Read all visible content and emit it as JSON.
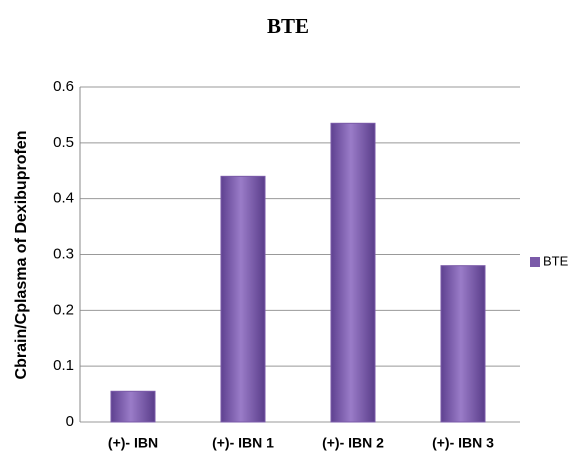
{
  "chart_data": {
    "type": "bar",
    "title": "BTE",
    "y_label": "Cbrain/Cplasma of Dexibuprofen",
    "categories": [
      "(+)- IBN",
      "(+)- IBN 1",
      "(+)- IBN 2",
      "(+)- IBN 3"
    ],
    "series": [
      {
        "name": "BTE",
        "color": "#7a5aa8",
        "values": [
          0.055,
          0.44,
          0.535,
          0.28
        ]
      }
    ],
    "ylim": [
      0,
      0.6
    ],
    "yticks": [
      0,
      0.1,
      0.2,
      0.3,
      0.4,
      0.5,
      0.6
    ],
    "grid": true,
    "legend": "right"
  }
}
